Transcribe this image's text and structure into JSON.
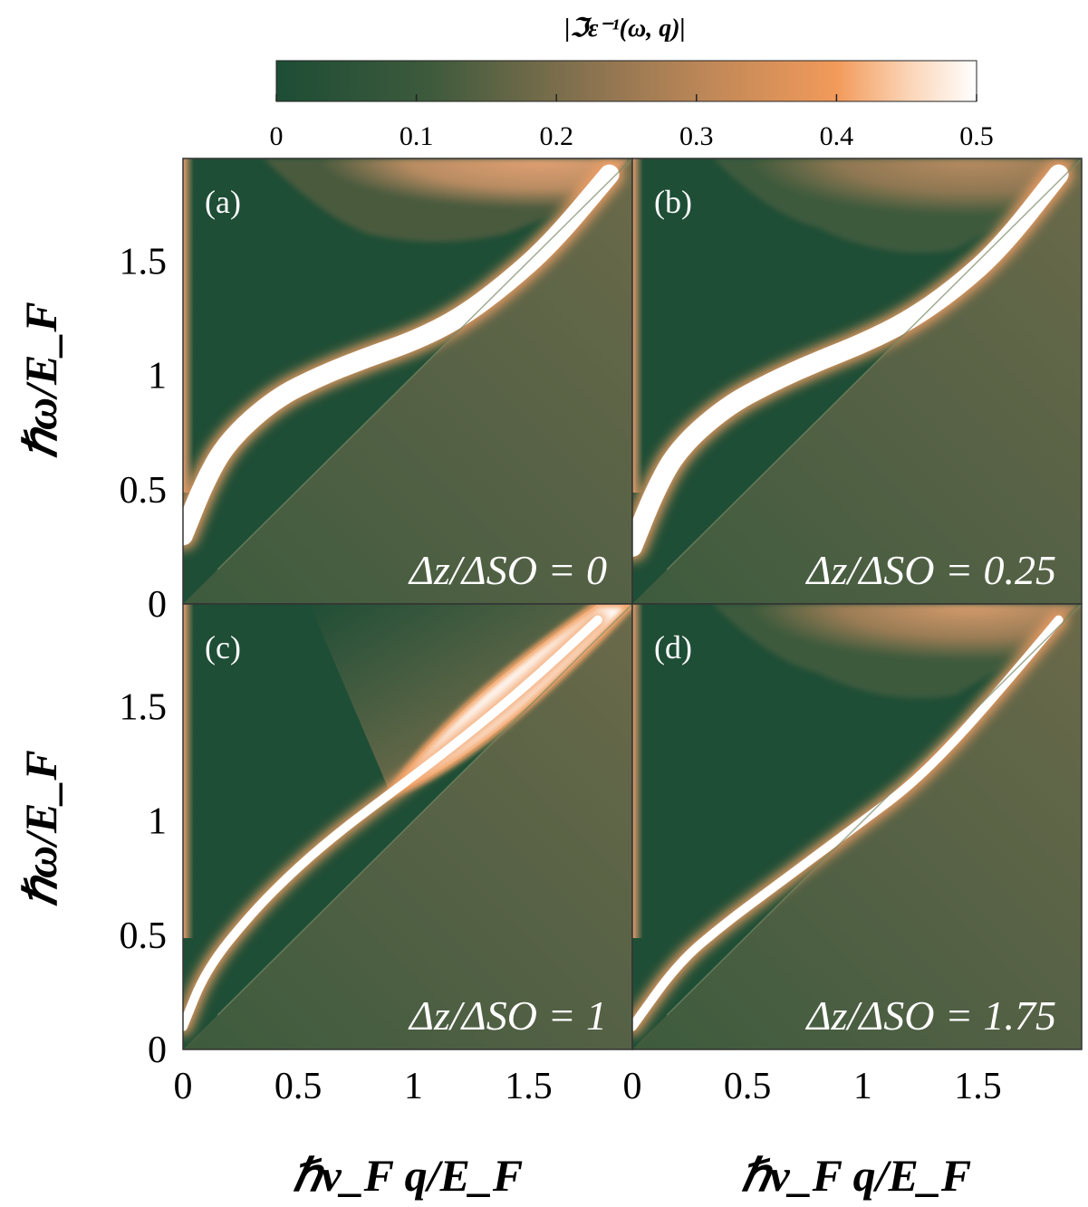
{
  "colorbar": {
    "title": "|ℑε⁻¹(ω, q)|",
    "ticks": [
      "0",
      "0.1",
      "0.2",
      "0.3",
      "0.4",
      "0.5"
    ],
    "range": [
      0,
      0.5
    ],
    "colors": [
      "#1d4d35",
      "#f0a068",
      "#ffffff"
    ]
  },
  "axes": {
    "ylabel": "ℏω/E_F",
    "xlabel": "ℏν_F q/E_F",
    "yticks_top": [
      "0",
      "0.5",
      "1",
      "1.5"
    ],
    "yticks_bottom": [
      "0",
      "0.5",
      "1",
      "1.5"
    ],
    "xticks_left": [
      "0",
      "0.5",
      "1",
      "1.5"
    ],
    "xticks_right": [
      "0",
      "0.5",
      "1",
      "1.5"
    ]
  },
  "chart_data": [
    {
      "type": "heatmap",
      "panel": "(a)",
      "annotation": "Δz/ΔSO = 0",
      "ratio": 0,
      "xlim": [
        0,
        1.95
      ],
      "ylim": [
        0,
        1.95
      ],
      "plasmon_branch": [
        [
          0.0,
          0.3
        ],
        [
          0.1,
          0.55
        ],
        [
          0.2,
          0.72
        ],
        [
          0.4,
          0.9
        ],
        [
          0.6,
          1.0
        ],
        [
          0.8,
          1.08
        ],
        [
          1.0,
          1.15
        ],
        [
          1.2,
          1.25
        ],
        [
          1.4,
          1.4
        ],
        [
          1.6,
          1.58
        ],
        [
          1.85,
          1.88
        ]
      ],
      "high_energy_region_min": [
        [
          0.8,
          1.87
        ],
        [
          1.1,
          1.55
        ],
        [
          1.4,
          1.62
        ],
        [
          1.6,
          1.95
        ]
      ]
    },
    {
      "type": "heatmap",
      "panel": "(b)",
      "annotation": "Δz/ΔSO = 0.25",
      "ratio": 0.25,
      "xlim": [
        0,
        1.95
      ],
      "ylim": [
        0,
        1.95
      ],
      "plasmon_branch": [
        [
          0.0,
          0.25
        ],
        [
          0.1,
          0.5
        ],
        [
          0.2,
          0.68
        ],
        [
          0.4,
          0.86
        ],
        [
          0.6,
          0.97
        ],
        [
          0.8,
          1.06
        ],
        [
          1.0,
          1.14
        ],
        [
          1.2,
          1.24
        ],
        [
          1.4,
          1.38
        ],
        [
          1.6,
          1.56
        ],
        [
          1.85,
          1.88
        ]
      ],
      "high_energy_region_min": [
        [
          0.8,
          1.9
        ],
        [
          1.1,
          1.5
        ],
        [
          1.4,
          1.55
        ],
        [
          1.6,
          1.95
        ]
      ]
    },
    {
      "type": "heatmap",
      "panel": "(c)",
      "annotation": "Δz/ΔSO = 1",
      "ratio": 1,
      "xlim": [
        0,
        1.95
      ],
      "ylim": [
        0,
        1.95
      ],
      "plasmon_branch": [
        [
          0.0,
          0.1
        ],
        [
          0.1,
          0.35
        ],
        [
          0.3,
          0.6
        ],
        [
          0.5,
          0.8
        ],
        [
          0.7,
          0.97
        ],
        [
          0.9,
          1.12
        ],
        [
          1.2,
          1.35
        ],
        [
          1.5,
          1.6
        ],
        [
          1.8,
          1.88
        ]
      ],
      "high_energy_region_min": [
        [
          0.95,
          1.12
        ],
        [
          1.95,
          1.95
        ]
      ]
    },
    {
      "type": "heatmap",
      "panel": "(d)",
      "annotation": "Δz/ΔSO = 1.75",
      "ratio": 1.75,
      "xlim": [
        0,
        1.95
      ],
      "ylim": [
        0,
        1.95
      ],
      "plasmon_branch": [
        [
          0.0,
          0.1
        ],
        [
          0.2,
          0.38
        ],
        [
          0.4,
          0.55
        ],
        [
          0.6,
          0.7
        ],
        [
          0.8,
          0.85
        ],
        [
          1.0,
          1.0
        ],
        [
          1.2,
          1.15
        ],
        [
          1.4,
          1.35
        ],
        [
          1.6,
          1.58
        ],
        [
          1.85,
          1.88
        ]
      ],
      "high_energy_region_min": [
        [
          0.8,
          1.9
        ],
        [
          1.1,
          1.5
        ],
        [
          1.4,
          1.55
        ],
        [
          1.6,
          1.95
        ]
      ]
    }
  ]
}
